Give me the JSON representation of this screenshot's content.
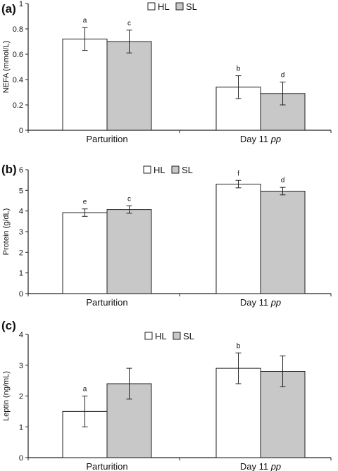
{
  "legend": {
    "hl": "HL",
    "sl": "SL"
  },
  "colors": {
    "hl": "#ffffff",
    "sl": "#c8c8c8",
    "stroke": "#222222"
  },
  "chart_data": [
    {
      "type": "bar",
      "panel_label": "(a)",
      "ylabel": "NEFA (mmol/L)",
      "ylim": [
        0,
        1
      ],
      "yticks": [
        "0",
        "0.2",
        "0.4",
        "0.6",
        "0.8",
        "1"
      ],
      "ytick_values": [
        0,
        0.2,
        0.4,
        0.6,
        0.8,
        1
      ],
      "categories": [
        "Parturition",
        "Day 11 pp"
      ],
      "category_parts": [
        [
          "Parturition",
          ""
        ],
        [
          "Day 11 ",
          "pp"
        ]
      ],
      "series": [
        {
          "name": "HL",
          "values": [
            0.72,
            0.34
          ],
          "errors": [
            0.09,
            0.09
          ],
          "sig": [
            "a",
            "b"
          ]
        },
        {
          "name": "SL",
          "values": [
            0.7,
            0.29
          ],
          "errors": [
            0.09,
            0.09
          ],
          "sig": [
            "c",
            "d"
          ]
        }
      ]
    },
    {
      "type": "bar",
      "panel_label": "(b)",
      "ylabel": "Protein (g/dL)",
      "ylim": [
        0,
        6
      ],
      "yticks": [
        "0",
        "1",
        "2",
        "3",
        "4",
        "5",
        "6"
      ],
      "ytick_values": [
        0,
        1,
        2,
        3,
        4,
        5,
        6
      ],
      "categories": [
        "Parturition",
        "Day 11 pp"
      ],
      "category_parts": [
        [
          "Parturition",
          ""
        ],
        [
          "Day 11 ",
          "pp"
        ]
      ],
      "series": [
        {
          "name": "HL",
          "values": [
            3.92,
            5.3
          ],
          "errors": [
            0.18,
            0.18
          ],
          "sig": [
            "e",
            "f"
          ]
        },
        {
          "name": "SL",
          "values": [
            4.07,
            4.96
          ],
          "errors": [
            0.18,
            0.18
          ],
          "sig": [
            "c",
            "d"
          ]
        }
      ]
    },
    {
      "type": "bar",
      "panel_label": "(c)",
      "ylabel": "Leptin (ng/mL)",
      "ylim": [
        0,
        4
      ],
      "yticks": [
        "0",
        "1",
        "2",
        "3",
        "4"
      ],
      "ytick_values": [
        0,
        1,
        2,
        3,
        4
      ],
      "categories": [
        "Parturition",
        "Day 11 pp"
      ],
      "category_parts": [
        [
          "Parturition",
          ""
        ],
        [
          "Day 11 ",
          "pp"
        ]
      ],
      "series": [
        {
          "name": "HL",
          "values": [
            1.5,
            2.9
          ],
          "errors": [
            0.5,
            0.5
          ],
          "sig": [
            "a",
            "b"
          ]
        },
        {
          "name": "SL",
          "values": [
            2.4,
            2.8
          ],
          "errors": [
            0.5,
            0.5
          ],
          "sig": [
            "",
            ""
          ]
        }
      ]
    }
  ]
}
